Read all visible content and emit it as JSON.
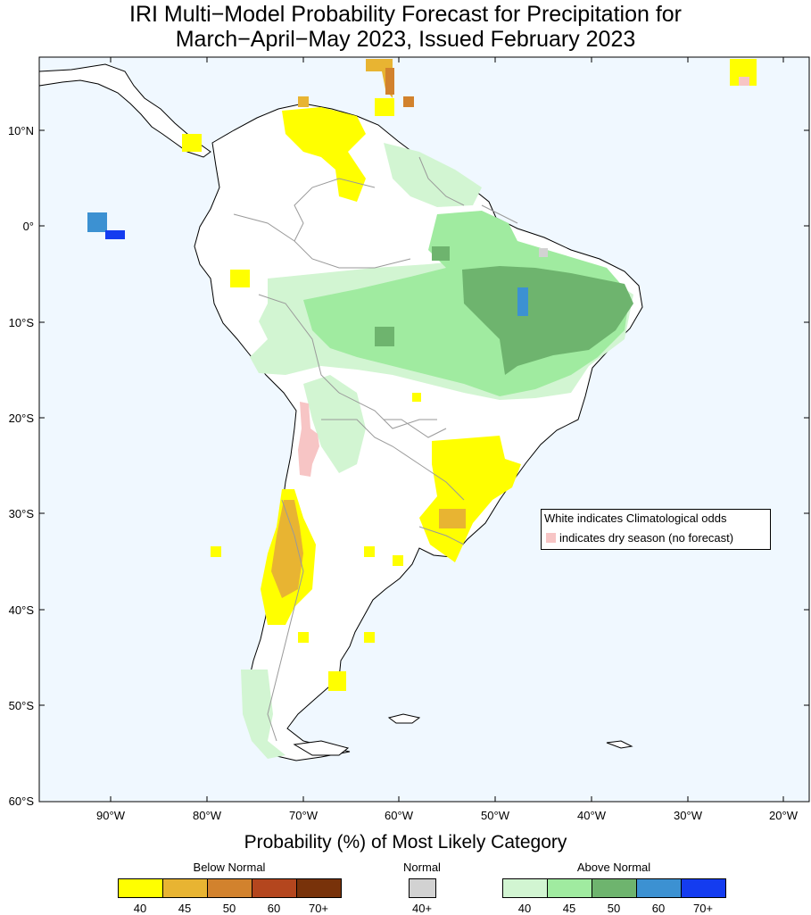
{
  "title": {
    "line1": "IRI Multi−Model Probability Forecast for Precipitation for",
    "line2": "March−April−May 2023, Issued February 2023"
  },
  "axes": {
    "lat_labels": [
      "10°N",
      "0°",
      "10°S",
      "20°S",
      "30°S",
      "40°S",
      "50°S",
      "60°S"
    ],
    "lon_labels": [
      "90°W",
      "80°W",
      "70°W",
      "60°W",
      "50°W",
      "40°W",
      "30°W",
      "20°W"
    ]
  },
  "note": {
    "line1": "White indicates Climatological odds",
    "line2": "indicates dry season (no forecast)"
  },
  "legend": {
    "title": "Probability (%) of Most Likely Category",
    "below_normal": {
      "label": "Below Normal",
      "ticks": [
        "40",
        "45",
        "50",
        "60",
        "70+"
      ],
      "colors": [
        "#ffff00",
        "#e8b432",
        "#d2822d",
        "#b4461e",
        "#78320a"
      ]
    },
    "normal": {
      "label": "Normal",
      "ticks": [
        "40+"
      ],
      "colors": [
        "#d2d2d2"
      ]
    },
    "above_normal": {
      "label": "Above Normal",
      "ticks": [
        "40",
        "45",
        "50",
        "60",
        "70+"
      ],
      "colors": [
        "#d2f5d2",
        "#a0eba0",
        "#6eb46e",
        "#3c91d2",
        "#143cf0"
      ]
    }
  },
  "colors": {
    "ocean": "#f0f8ff",
    "land": "#ffffff",
    "dry_season": "#f7c5c5"
  }
}
